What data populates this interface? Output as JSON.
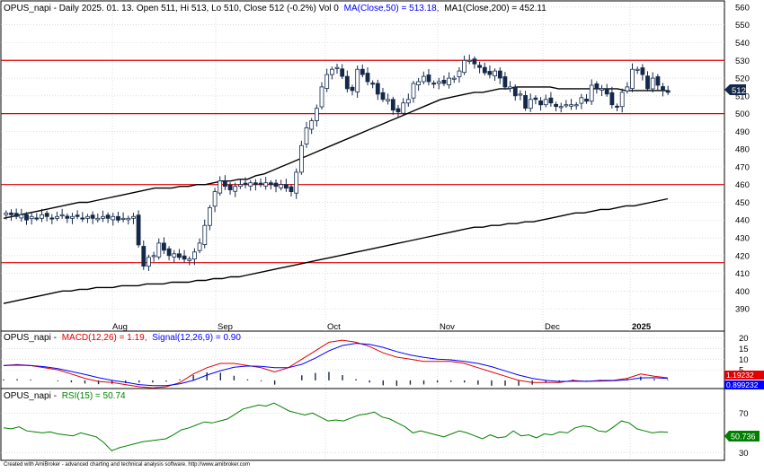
{
  "colors": {
    "price_up": "#ffffff",
    "price_down": "#14284a",
    "candle_stroke": "#14284a",
    "ma": "#000000",
    "hline": "#e00000",
    "macd": "#0000ff",
    "signal": "#e00000",
    "hist": "#14284a",
    "rsi": "#008000",
    "badge_price": "#14284a",
    "badge_macd": "#e00000",
    "badge_signal": "#0000ff",
    "badge_rsi": "#008000"
  },
  "price_pane": {
    "title": "OPUS_napi - Daily 2025. 01. 13. Open 511, Hi 513, Lo 510, Close 512 (-0.2%) Vol 0",
    "ma50_label": "MA(Close,50) = 513.18,",
    "ma200_label": "MA1(Close,200) = 452.11",
    "current_price": "512",
    "y_ticks": [
      "390",
      "400",
      "410",
      "420",
      "430",
      "440",
      "450",
      "460",
      "470",
      "480",
      "490",
      "500",
      "510",
      "520",
      "530",
      "540",
      "550",
      "560"
    ],
    "x_labels": [
      "Aug",
      "Sep",
      "Oct",
      "Nov",
      "Dec",
      "2025"
    ]
  },
  "macd_pane": {
    "prefix": "OPUS_napi -",
    "macd_label": "MACD(12,26) = 1.19,",
    "signal_label": "Signal(12,26,9) = 0.90",
    "macd_badge": "1.19232",
    "signal_badge": "0.899232",
    "y_ticks": [
      "5",
      "10",
      "15",
      "20"
    ]
  },
  "rsi_pane": {
    "prefix": "OPUS_napi -",
    "rsi_label": "RSI(15) = 50.74",
    "rsi_badge": "50.736",
    "y_ticks": [
      "30",
      "70"
    ]
  },
  "footer": "Created with AmiBroker - advanced charting and technical analysis software. http://www.amibroker.com",
  "chart_data": [
    {
      "type": "candlestick",
      "title": "OPUS_napi - Daily 2025. 01. 13. Open 511, Hi 513, Lo 510, Close 512 (-0.2%) Vol 0",
      "ylim": [
        385,
        562
      ],
      "x_labels": [
        "Aug",
        "Sep",
        "Oct",
        "Nov",
        "Dec",
        "2025"
      ],
      "horizontal_lines": [
        530,
        500,
        460,
        416
      ],
      "close": [
        444,
        443,
        442,
        443,
        440,
        442,
        441,
        443,
        442,
        441,
        442,
        443,
        441,
        442,
        442,
        441,
        442,
        441,
        441,
        442,
        441,
        442,
        440,
        441,
        441,
        442,
        426,
        414,
        419,
        420,
        427,
        423,
        420,
        421,
        419,
        418,
        418,
        422,
        427,
        437,
        447,
        456,
        462,
        459,
        457,
        459,
        460,
        460,
        461,
        460,
        460,
        461,
        460,
        459,
        460,
        458,
        456,
        467,
        482,
        492,
        496,
        503,
        515,
        522,
        525,
        526,
        521,
        514,
        513,
        525,
        522,
        518,
        517,
        511,
        508,
        508,
        502,
        501,
        506,
        508,
        517,
        518,
        521,
        518,
        517,
        518,
        517,
        520,
        520,
        524,
        530,
        530,
        528,
        526,
        523,
        522,
        524,
        520,
        515,
        515,
        510,
        511,
        503,
        508,
        508,
        505,
        508,
        506,
        504,
        504,
        505,
        505,
        505,
        509,
        507,
        516,
        514,
        514,
        511,
        505,
        504,
        512,
        515,
        525,
        525,
        522,
        514,
        520,
        516,
        513,
        512
      ],
      "series": [
        {
          "name": "MA(Close,50)",
          "last": 513.18,
          "values": [
            441,
            442,
            443,
            444,
            445,
            446,
            447,
            448,
            449,
            450,
            450,
            451,
            452,
            453,
            454,
            455,
            456,
            457,
            458,
            458,
            458,
            459,
            459,
            460,
            460,
            461,
            462,
            462,
            463,
            463,
            465,
            466,
            468,
            470,
            472,
            474,
            476,
            478,
            480,
            482,
            484,
            486,
            488,
            490,
            492,
            494,
            496,
            498,
            500,
            502,
            504,
            506,
            508,
            509,
            510,
            511,
            512,
            512,
            513,
            514,
            514,
            515,
            515,
            515,
            515,
            515,
            514,
            514,
            514,
            514,
            514,
            514,
            514,
            514,
            513,
            513,
            513,
            513,
            513,
            513
          ]
        },
        {
          "name": "MA1(Close,200)",
          "last": 452.11,
          "values": [
            393,
            394,
            395,
            396,
            397,
            398,
            399,
            400,
            400,
            401,
            401,
            402,
            402,
            402,
            403,
            403,
            403,
            404,
            404,
            404,
            405,
            405,
            405,
            406,
            406,
            407,
            407,
            408,
            408,
            409,
            410,
            411,
            412,
            413,
            414,
            415,
            416,
            417,
            418,
            419,
            420,
            421,
            422,
            423,
            424,
            425,
            426,
            427,
            428,
            429,
            430,
            431,
            432,
            433,
            434,
            435,
            436,
            436,
            437,
            437,
            438,
            438,
            439,
            439,
            440,
            441,
            442,
            443,
            444,
            444,
            445,
            446,
            446,
            447,
            448,
            448,
            449,
            450,
            451,
            452
          ]
        }
      ]
    },
    {
      "type": "line",
      "title": "OPUS_napi - MACD(12,26) = 1.19, Signal(12,26,9) = 0.90",
      "ylim": [
        -3,
        22
      ],
      "series": [
        {
          "name": "MACD(12,26)",
          "last": 1.19,
          "values": [
            7,
            7.5,
            7,
            6,
            5,
            3,
            1,
            -0.5,
            -1,
            -2,
            -3,
            -3.5,
            -3,
            -1,
            3,
            6,
            8,
            8,
            7,
            6,
            4,
            6,
            10,
            14,
            18,
            19,
            18,
            16,
            13,
            11,
            10,
            9,
            9,
            9,
            8,
            6,
            4,
            2,
            0,
            -1,
            -1,
            -1,
            0,
            -0.5,
            0,
            0,
            1,
            3,
            2,
            1.19
          ]
        },
        {
          "name": "Signal(12,26,9)",
          "last": 0.9,
          "values": [
            7,
            7.2,
            7,
            6.5,
            5.6,
            4.2,
            2.8,
            1.3,
            0,
            -0.9,
            -2,
            -2.5,
            -2.5,
            -1.6,
            0,
            2.5,
            4.6,
            6.2,
            6.8,
            6.6,
            6,
            6,
            7.6,
            10.5,
            14,
            16.5,
            17.5,
            17,
            15.6,
            13.6,
            12,
            10.9,
            10,
            9.7,
            9,
            8,
            6.5,
            4.5,
            2.5,
            1,
            0,
            -0.5,
            -0.4,
            -0.4,
            -0.3,
            -0.1,
            0.3,
            1.2,
            1.3,
            0.9
          ]
        },
        {
          "name": "Histogram",
          "values": [
            0.5,
            0.6,
            0.4,
            0.0,
            -0.4,
            -0.9,
            -1.5,
            -1.8,
            -1.6,
            -1.3,
            -1.0,
            -1.0,
            -0.6,
            0.5,
            2.5,
            3.8,
            3.6,
            2.2,
            0.5,
            -0.4,
            -2.0,
            0.0,
            2.4,
            3.5,
            4.0,
            2.5,
            0.6,
            -1.0,
            -2.3,
            -2.6,
            -2.0,
            -1.9,
            -1.0,
            -0.7,
            -1.0,
            -2.0,
            -2.5,
            -2.5,
            -2.5,
            -2.0,
            -1.0,
            -0.5,
            0.4,
            -0.1,
            0.3,
            0.1,
            0.7,
            1.8,
            0.7,
            0.3
          ]
        }
      ]
    },
    {
      "type": "line",
      "title": "OPUS_napi - RSI(15) = 50.74",
      "ylim": [
        25,
        82
      ],
      "series": [
        {
          "name": "RSI(15)",
          "last": 50.74,
          "values": [
            55,
            54,
            56,
            52,
            51,
            50,
            51,
            49,
            48,
            47,
            50,
            48,
            46,
            40,
            32,
            35,
            37,
            39,
            41,
            42,
            43,
            44,
            48,
            53,
            55,
            58,
            61,
            60,
            62,
            64,
            69,
            74,
            76,
            78,
            77,
            80,
            76,
            72,
            70,
            68,
            70,
            66,
            62,
            63,
            62,
            65,
            68,
            69,
            71,
            66,
            64,
            60,
            56,
            50,
            52,
            50,
            48,
            46,
            49,
            52,
            50,
            47,
            44,
            48,
            45,
            46,
            52,
            47,
            48,
            45,
            49,
            48,
            51,
            50,
            55,
            57,
            56,
            52,
            51,
            56,
            62,
            60,
            54,
            52,
            50,
            51,
            50.74
          ]
        }
      ]
    }
  ]
}
